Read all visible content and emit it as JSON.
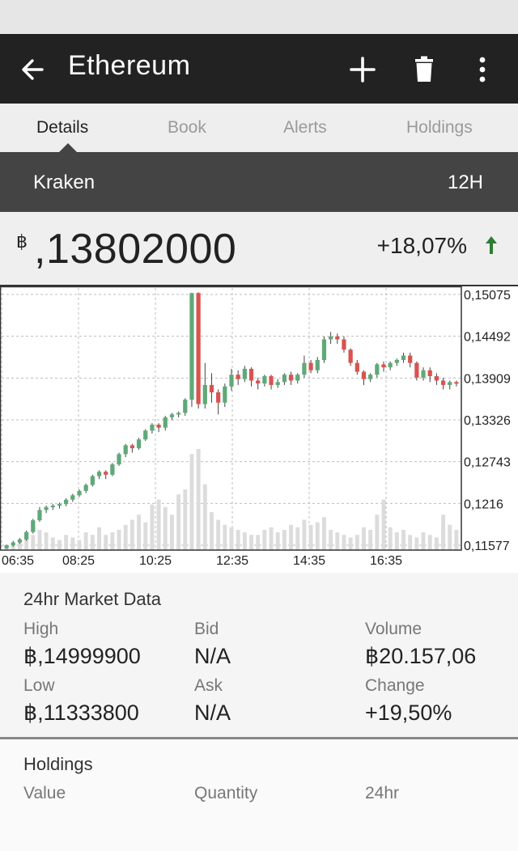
{
  "app": {
    "title": "Ethereum"
  },
  "tabs": [
    {
      "label": "Details"
    },
    {
      "label": "Book"
    },
    {
      "label": "Alerts"
    },
    {
      "label": "Holdings"
    }
  ],
  "exchange": {
    "name": "Kraken",
    "timeframe": "12H"
  },
  "ticker": {
    "currency_symbol": "฿",
    "price": ",13802000",
    "change": "+18,07%",
    "direction": "up",
    "up_color": "#2e7d32"
  },
  "chart_data": {
    "type": "candlestick",
    "y_ticks": [
      "0,15075",
      "0,14492",
      "0,13909",
      "0,13326",
      "0,12743",
      "0,1216",
      "0,11577"
    ],
    "ylim": [
      0.11577,
      0.15075
    ],
    "x_ticks": [
      "06:35",
      "08:25",
      "10:25",
      "12:35",
      "14:35",
      "16:35"
    ],
    "colors": {
      "up": "#5fa978",
      "down": "#d9534f",
      "volume": "#dcdcdc"
    },
    "candles": [
      [
        0.1158,
        0.1162,
        0.1157,
        0.1163
      ],
      [
        0.1162,
        0.1166,
        0.116,
        0.1168
      ],
      [
        0.1166,
        0.117,
        0.1164,
        0.1172
      ],
      [
        0.117,
        0.118,
        0.1168,
        0.1182
      ],
      [
        0.118,
        0.1196,
        0.1178,
        0.1198
      ],
      [
        0.1196,
        0.121,
        0.1194,
        0.1214
      ],
      [
        0.121,
        0.1214,
        0.1206,
        0.1216
      ],
      [
        0.1214,
        0.1216,
        0.121,
        0.1218
      ],
      [
        0.1216,
        0.1218,
        0.1212,
        0.122
      ],
      [
        0.1218,
        0.1224,
        0.1215,
        0.1226
      ],
      [
        0.1224,
        0.123,
        0.1221,
        0.1232
      ],
      [
        0.123,
        0.1236,
        0.1228,
        0.1238
      ],
      [
        0.1236,
        0.1244,
        0.1233,
        0.1246
      ],
      [
        0.1244,
        0.1256,
        0.1242,
        0.1258
      ],
      [
        0.1256,
        0.1262,
        0.1252,
        0.1264
      ],
      [
        0.1262,
        0.1258,
        0.1252,
        0.1264
      ],
      [
        0.1258,
        0.1272,
        0.1256,
        0.1274
      ],
      [
        0.1272,
        0.1286,
        0.127,
        0.1288
      ],
      [
        0.1286,
        0.1298,
        0.1282,
        0.13
      ],
      [
        0.1298,
        0.1294,
        0.1288,
        0.13
      ],
      [
        0.1294,
        0.1306,
        0.1292,
        0.1308
      ],
      [
        0.1306,
        0.1318,
        0.1304,
        0.132
      ],
      [
        0.1318,
        0.1326,
        0.1314,
        0.1328
      ],
      [
        0.1326,
        0.1322,
        0.1316,
        0.1328
      ],
      [
        0.1322,
        0.1336,
        0.1318,
        0.1338
      ],
      [
        0.1336,
        0.134,
        0.1332,
        0.1342
      ],
      [
        0.134,
        0.1342,
        0.1336,
        0.1344
      ],
      [
        0.1342,
        0.136,
        0.1338,
        0.1362
      ],
      [
        0.136,
        0.1505,
        0.135,
        0.1505
      ],
      [
        0.1505,
        0.1354,
        0.1348,
        0.1506
      ],
      [
        0.1354,
        0.138,
        0.1348,
        0.141
      ],
      [
        0.138,
        0.137,
        0.1356,
        0.1396
      ],
      [
        0.137,
        0.1356,
        0.134,
        0.1374
      ],
      [
        0.1356,
        0.1378,
        0.135,
        0.1382
      ],
      [
        0.1378,
        0.1394,
        0.1372,
        0.1402
      ],
      [
        0.1394,
        0.1388,
        0.138,
        0.14
      ],
      [
        0.1388,
        0.1402,
        0.1384,
        0.1406
      ],
      [
        0.1402,
        0.1386,
        0.1378,
        0.1404
      ],
      [
        0.1386,
        0.1382,
        0.1374,
        0.139
      ],
      [
        0.1382,
        0.1392,
        0.1378,
        0.1394
      ],
      [
        0.1392,
        0.138,
        0.1374,
        0.1394
      ],
      [
        0.138,
        0.1384,
        0.1376,
        0.1388
      ],
      [
        0.1384,
        0.1394,
        0.138,
        0.1396
      ],
      [
        0.1394,
        0.1386,
        0.138,
        0.1398
      ],
      [
        0.1386,
        0.1394,
        0.1382,
        0.1396
      ],
      [
        0.1394,
        0.141,
        0.139,
        0.142
      ],
      [
        0.141,
        0.14,
        0.1396,
        0.1414
      ],
      [
        0.14,
        0.1414,
        0.1396,
        0.1418
      ],
      [
        0.1414,
        0.1442,
        0.141,
        0.1446
      ],
      [
        0.1442,
        0.1446,
        0.1436,
        0.1452
      ],
      [
        0.1446,
        0.1442,
        0.1436,
        0.145
      ],
      [
        0.1442,
        0.1428,
        0.1424,
        0.1446
      ],
      [
        0.1428,
        0.141,
        0.1406,
        0.143
      ],
      [
        0.141,
        0.1398,
        0.1394,
        0.1414
      ],
      [
        0.1398,
        0.1388,
        0.138,
        0.14
      ],
      [
        0.1388,
        0.1394,
        0.1384,
        0.1396
      ],
      [
        0.1394,
        0.1408,
        0.139,
        0.141
      ],
      [
        0.1408,
        0.1404,
        0.1398,
        0.1412
      ],
      [
        0.1404,
        0.141,
        0.14,
        0.1412
      ],
      [
        0.141,
        0.1414,
        0.1406,
        0.1416
      ],
      [
        0.1414,
        0.142,
        0.141,
        0.1424
      ],
      [
        0.142,
        0.141,
        0.1404,
        0.1424
      ],
      [
        0.141,
        0.139,
        0.1386,
        0.1412
      ],
      [
        0.139,
        0.14,
        0.1386,
        0.1404
      ],
      [
        0.14,
        0.1392,
        0.1384,
        0.1404
      ],
      [
        0.1392,
        0.1386,
        0.138,
        0.1396
      ],
      [
        0.1386,
        0.138,
        0.1374,
        0.139
      ],
      [
        0.138,
        0.1384,
        0.1374,
        0.1386
      ],
      [
        0.1384,
        0.1382,
        0.1378,
        0.1386
      ]
    ],
    "volume": [
      2,
      3,
      4,
      5,
      6,
      8,
      7,
      5,
      4,
      6,
      5,
      4,
      7,
      6,
      9,
      6,
      7,
      8,
      10,
      12,
      14,
      11,
      18,
      20,
      17,
      14,
      22,
      24,
      38,
      40,
      26,
      15,
      12,
      10,
      9,
      8,
      7,
      6,
      6,
      8,
      9,
      7,
      8,
      10,
      9,
      12,
      10,
      11,
      13,
      8,
      7,
      6,
      5,
      6,
      9,
      8,
      14,
      20,
      9,
      7,
      8,
      6,
      5,
      7,
      6,
      5,
      14,
      10,
      8
    ]
  },
  "market": {
    "title": "24hr Market Data",
    "high_label": "High",
    "high_value": "฿,14999900",
    "bid_label": "Bid",
    "bid_value": "N/A",
    "volume_label": "Volume",
    "volume_value": "฿20.157,06",
    "low_label": "Low",
    "low_value": "฿,11333800",
    "ask_label": "Ask",
    "ask_value": "N/A",
    "change_label": "Change",
    "change_value": "+19,50%"
  },
  "holdings": {
    "title": "Holdings",
    "value_label": "Value",
    "quantity_label": "Quantity",
    "h24_label": "24hr"
  }
}
